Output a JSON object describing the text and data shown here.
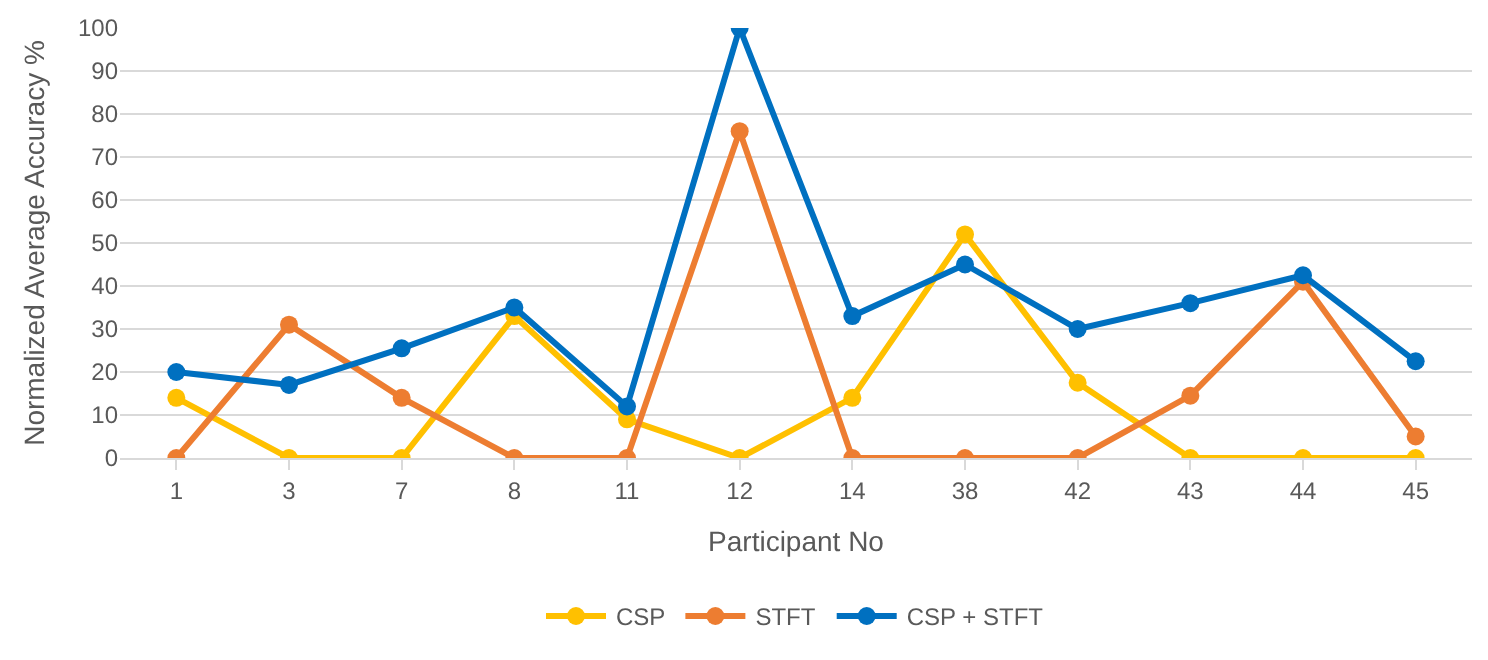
{
  "chart_data": {
    "type": "line",
    "xlabel": "Participant No",
    "ylabel": "Normalized Average Accuracy %",
    "categories": [
      "1",
      "3",
      "7",
      "8",
      "11",
      "12",
      "14",
      "38",
      "42",
      "43",
      "44",
      "45"
    ],
    "series": [
      {
        "name": "CSP",
        "color": "#ffc000",
        "values": [
          14,
          0,
          0,
          33,
          9,
          0,
          14,
          52,
          17.5,
          0,
          0,
          0
        ]
      },
      {
        "name": "STFT",
        "color": "#ed7d31",
        "values": [
          0,
          31,
          14,
          0,
          0,
          76,
          0,
          0,
          0,
          14.5,
          41,
          5
        ]
      },
      {
        "name": "CSP + STFT",
        "color": "#0070c0",
        "values": [
          20,
          17,
          25.5,
          35,
          12,
          100,
          33,
          45,
          30,
          36,
          42.5,
          22.5
        ]
      }
    ],
    "ylim": [
      0,
      100
    ],
    "yticks": [
      0,
      10,
      20,
      30,
      40,
      50,
      60,
      70,
      80,
      90,
      100
    ],
    "grid": "y",
    "legend": "bottom",
    "marker": "circle",
    "line_style": "solid"
  }
}
